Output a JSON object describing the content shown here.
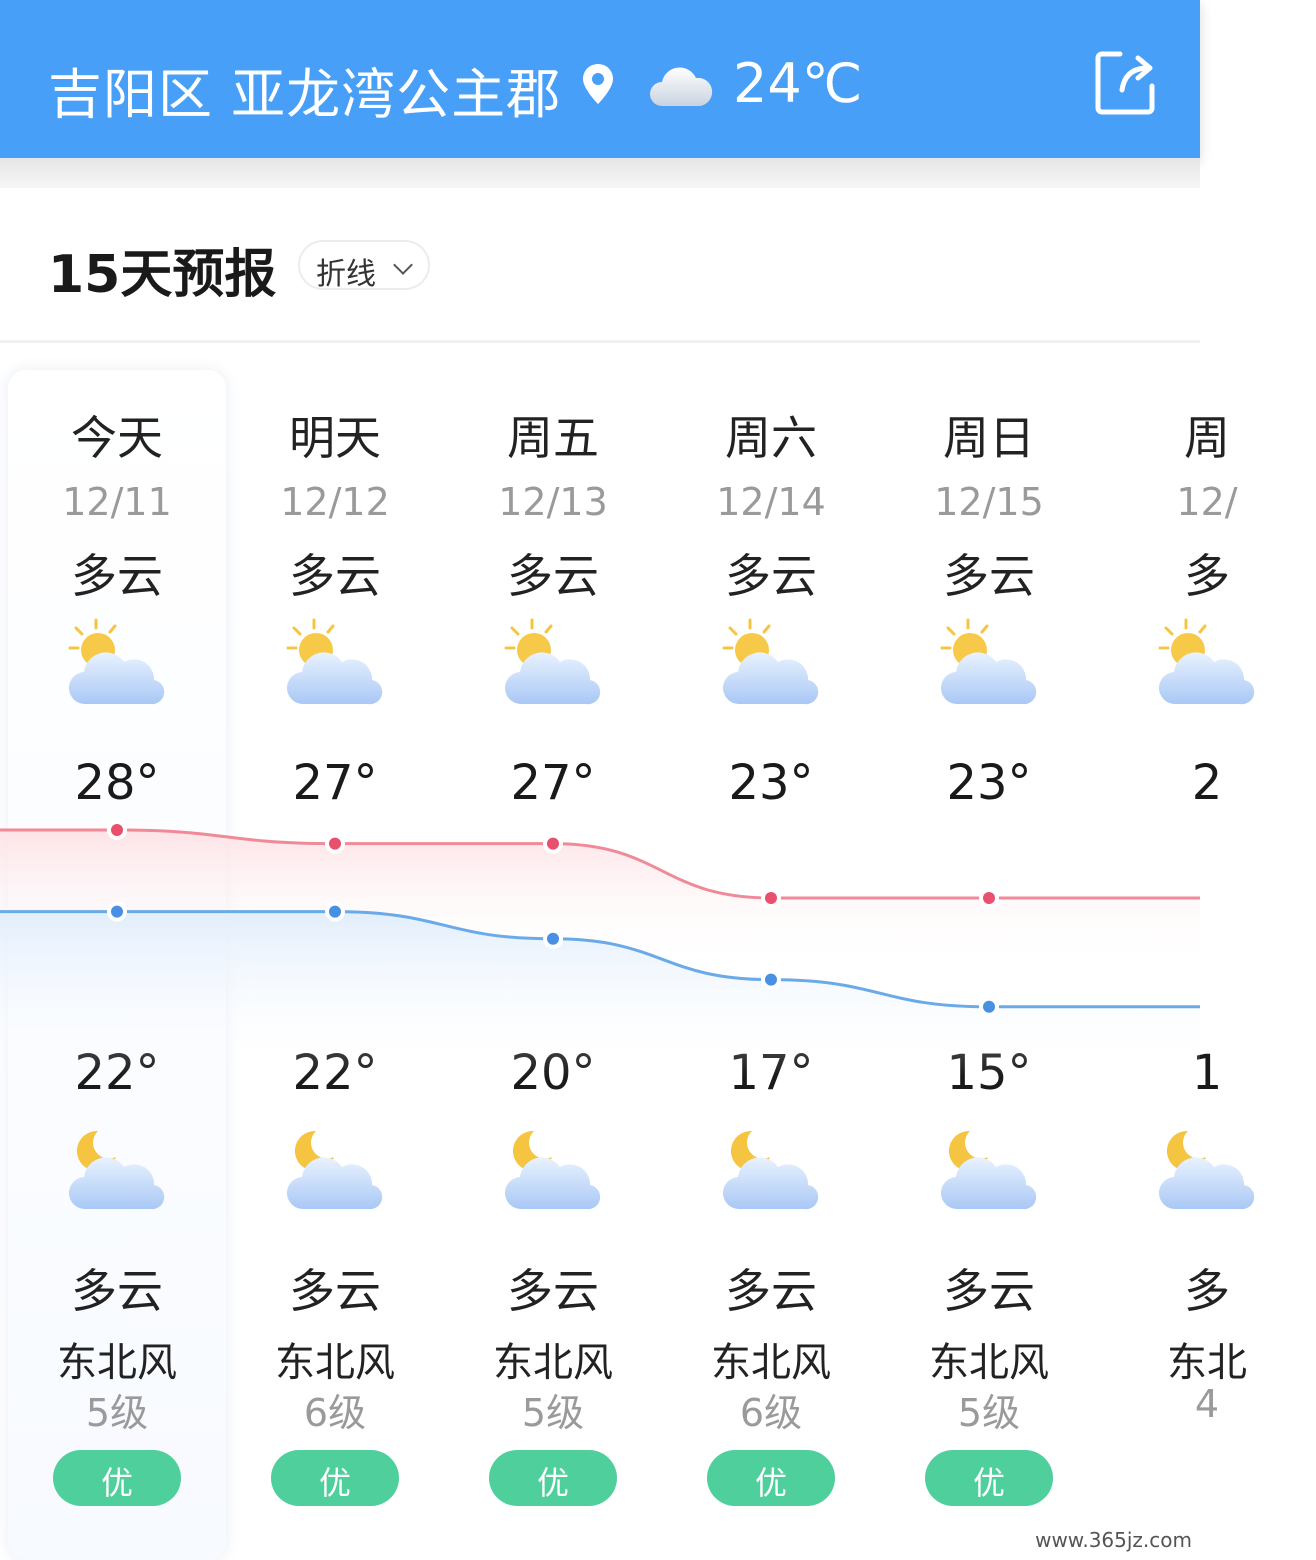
{
  "header": {
    "location": "吉阳区 亚龙湾公主郡",
    "current_temp": "24℃",
    "icons": [
      "location-pin-icon",
      "cloud-icon",
      "share-icon"
    ],
    "bg_color": "#479ff8"
  },
  "section": {
    "title": "15天预报",
    "mode": "折线"
  },
  "days": [
    {
      "week": "今天",
      "date": "12/11",
      "day_cond": "多云",
      "high": "28°",
      "low": "22°",
      "night_cond": "多云",
      "wind": "东北风",
      "level": "5级",
      "aqi": "优"
    },
    {
      "week": "明天",
      "date": "12/12",
      "day_cond": "多云",
      "high": "27°",
      "low": "22°",
      "night_cond": "多云",
      "wind": "东北风",
      "level": "6级",
      "aqi": "优"
    },
    {
      "week": "周五",
      "date": "12/13",
      "day_cond": "多云",
      "high": "27°",
      "low": "20°",
      "night_cond": "多云",
      "wind": "东北风",
      "level": "5级",
      "aqi": "优"
    },
    {
      "week": "周六",
      "date": "12/14",
      "day_cond": "多云",
      "high": "23°",
      "low": "17°",
      "night_cond": "多云",
      "wind": "东北风",
      "level": "6级",
      "aqi": "优"
    },
    {
      "week": "周日",
      "date": "12/15",
      "day_cond": "多云",
      "high": "23°",
      "low": "15°",
      "night_cond": "多云",
      "wind": "东北风",
      "level": "5级",
      "aqi": "优"
    },
    {
      "week": "周",
      "date": "12/",
      "day_cond": "多",
      "high": "2",
      "low": "1",
      "night_cond": "多",
      "wind": "东北",
      "level": "4"
    }
  ],
  "chart_data": {
    "type": "line",
    "categories": [
      "12/11",
      "12/12",
      "12/13",
      "12/14",
      "12/15"
    ],
    "series": [
      {
        "values": [
          28,
          27,
          27,
          23,
          23
        ],
        "color": "#e8506e"
      },
      {
        "values": [
          22,
          22,
          20,
          17,
          15
        ],
        "color": "#4a90e2"
      }
    ]
  },
  "colors": {
    "aqi_good": "#4fcf9c",
    "high_line": "#f08a98",
    "low_line": "#6aaae8"
  },
  "watermark": "www.365jz.com"
}
